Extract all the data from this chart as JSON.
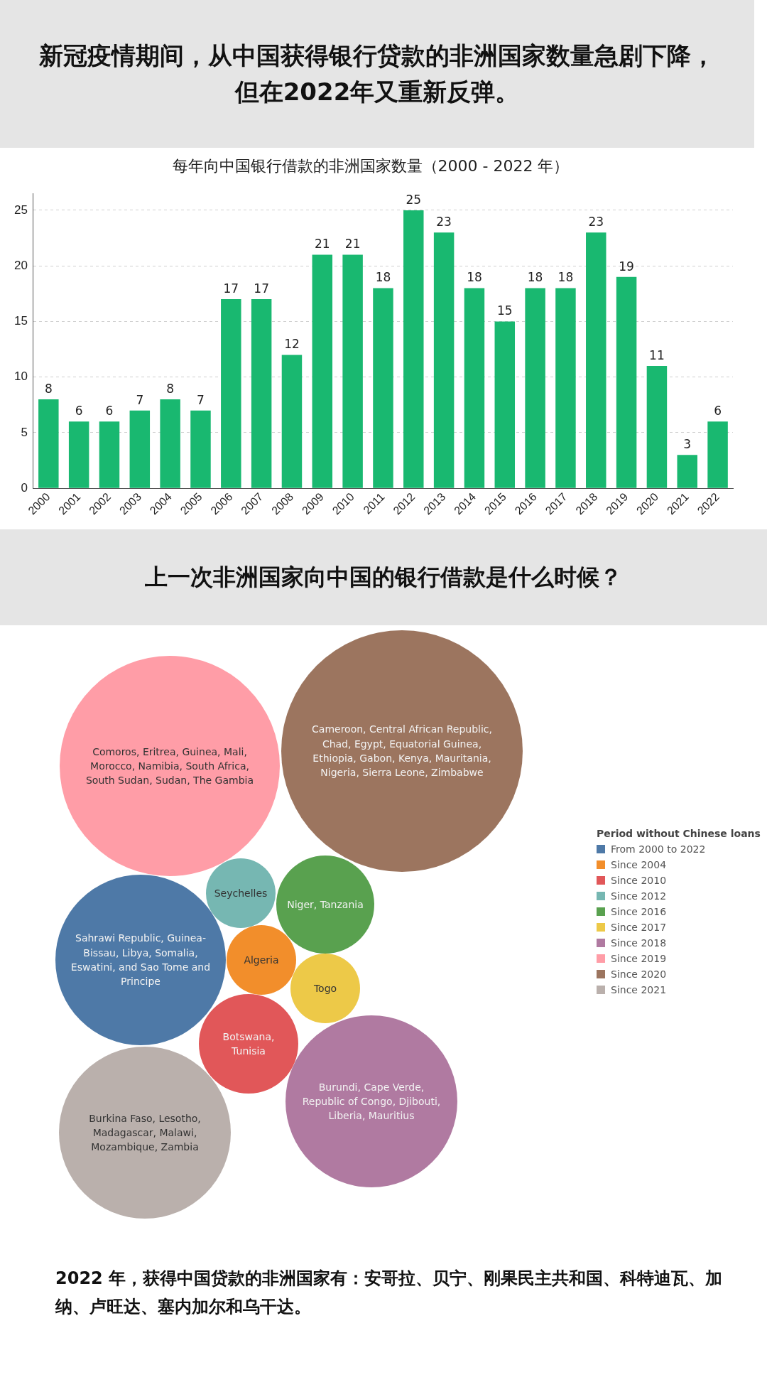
{
  "chart_data": [
    {
      "type": "bar",
      "title": "新冠疫情期间，从中国获得银行贷款的非洲国家数量急剧下降，但在2022年又重新反弹。",
      "subtitle": "每年向中国银行借款的非洲国家数量（2000 - 2022 年）",
      "categories": [
        "2000",
        "2001",
        "2002",
        "2003",
        "2004",
        "2005",
        "2006",
        "2007",
        "2008",
        "2009",
        "2010",
        "2011",
        "2012",
        "2013",
        "2014",
        "2015",
        "2016",
        "2017",
        "2018",
        "2019",
        "2020",
        "2021",
        "2022"
      ],
      "values": [
        8,
        6,
        6,
        7,
        8,
        7,
        17,
        17,
        12,
        21,
        21,
        18,
        25,
        23,
        18,
        15,
        18,
        18,
        23,
        19,
        11,
        3,
        6
      ],
      "color": "#19b870",
      "ylim": [
        0,
        26.5
      ],
      "yticks": [
        0,
        5,
        10,
        15,
        20,
        25
      ],
      "grid": "y",
      "data_labels": true
    },
    {
      "type": "other",
      "title": "上一次非洲国家向中国的银行借款是什么时候？",
      "legend_title": "Period without Chinese loans",
      "categories": [
        "From 2000 to 2022",
        "Since 2004",
        "Since 2010",
        "Since 2012",
        "Since 2016",
        "Since 2017",
        "Since 2018",
        "Since 2019",
        "Since 2020",
        "Since 2021"
      ],
      "colors": [
        "#4e79a7",
        "#f28e2b",
        "#e15759",
        "#76b7b2",
        "#59a14f",
        "#edc948",
        "#b07aa1",
        "#ff9da7",
        "#9c755f",
        "#bab0ac"
      ],
      "annotations": [
        "Sahrawi Republic, Guinea-Bissau, Libya, Somalia, Eswatini, and Sao Tome and Principe",
        "Algeria",
        "Botswana, Tunisia",
        "Seychelles",
        "Niger, Tanzania",
        "Togo",
        "Burundi, Cape Verde, Republic of Congo, Djibouti, Liberia, Mauritius",
        "Comoros, Eritrea, Guinea, Mali, Morocco, Namibia, South Africa, South Sudan, Sudan, The Gambia",
        "Cameroon, Central African Republic, Chad, Egypt, Equatorial Guinea, Ethiopia, Gabon, Kenya, Mauritania, Nigeria, Sierra Leone, Zimbabwe",
        "Burkina Faso, Lesotho, Madagascar, Malawi, Mozambique, Zambia",
        "2022 年，获得中国贷款的非洲国家有：安哥拉、贝宁、刚果民主共和国、科特迪瓦、加纳、卢旺达、塞内加尔和乌干达。"
      ]
    }
  ]
}
